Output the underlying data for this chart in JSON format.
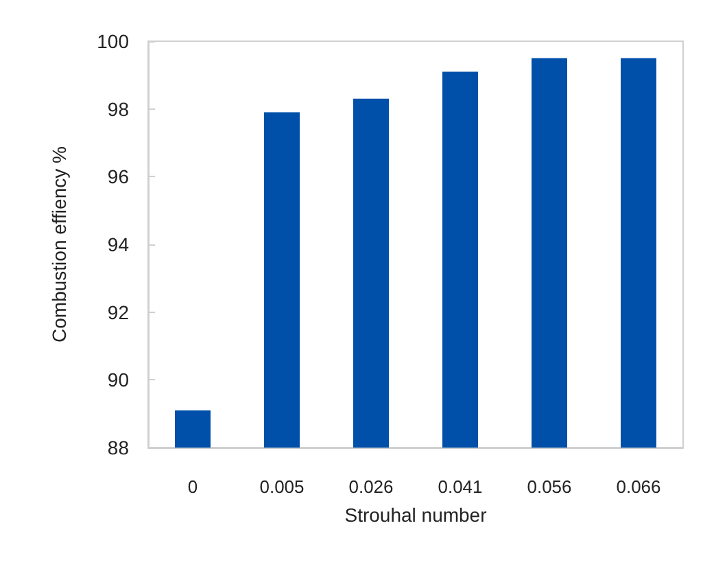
{
  "chart_data": {
    "type": "bar",
    "xlabel": "Strouhal number",
    "ylabel": "Combustion effiency %",
    "categories": [
      "0",
      "0.005",
      "0.026",
      "0.041",
      "0.056",
      "0.066"
    ],
    "values": [
      89.1,
      97.9,
      98.3,
      99.1,
      99.5,
      99.5
    ],
    "color": "#0050aa",
    "ylim": [
      88,
      100
    ],
    "yticks": [
      88,
      90,
      92,
      94,
      96,
      98,
      100
    ],
    "grid": false
  }
}
